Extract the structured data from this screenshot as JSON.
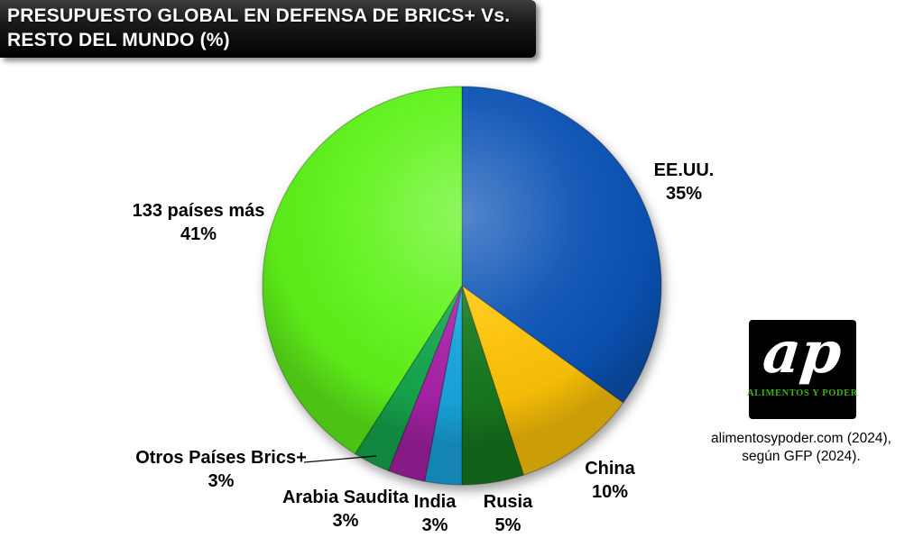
{
  "header": {
    "title_lines": [
      "PRESUPUESTO GLOBAL EN DEFENSA DE BRICS+ Vs.",
      "RESTO DEL MUNDO (%)"
    ]
  },
  "chart_data": {
    "type": "pie",
    "title": "PRESUPUESTO GLOBAL EN DEFENSA DE BRICS+ Vs. RESTO DEL MUNDO (%)",
    "unit": "%",
    "start_angle_deg": 0,
    "direction": "clockwise",
    "total": 100,
    "legend_position": "labels-around-pie",
    "grid": false,
    "slices": [
      {
        "label": "EE.UU.",
        "value": 35,
        "value_label": "35%",
        "color": "#0B53B5"
      },
      {
        "label": "China",
        "value": 10,
        "value_label": "10%",
        "color": "#FEC408"
      },
      {
        "label": "Rusia",
        "value": 5,
        "value_label": "5%",
        "color": "#17791F"
      },
      {
        "label": "India",
        "value": 3,
        "value_label": "3%",
        "color": "#19A6DE"
      },
      {
        "label": "Arabia Saudita",
        "value": 3,
        "value_label": "3%",
        "color": "#A822A8"
      },
      {
        "label": "Otros Países Brics+",
        "value": 3,
        "value_label": "3%",
        "color": "#15A74E"
      },
      {
        "label": "133 países más",
        "value": 41,
        "value_label": "41%",
        "color": "#5FF31A"
      }
    ]
  },
  "logo": {
    "monogram": "ap",
    "caption": "ALIMENTOS Y PODER",
    "bg_color": "#000000",
    "monogram_color": "#FFFFFF",
    "caption_color": "#3FAF14"
  },
  "attribution": {
    "lines": [
      "alimentosypoder.com (2024),",
      "según GFP (2024)."
    ]
  }
}
